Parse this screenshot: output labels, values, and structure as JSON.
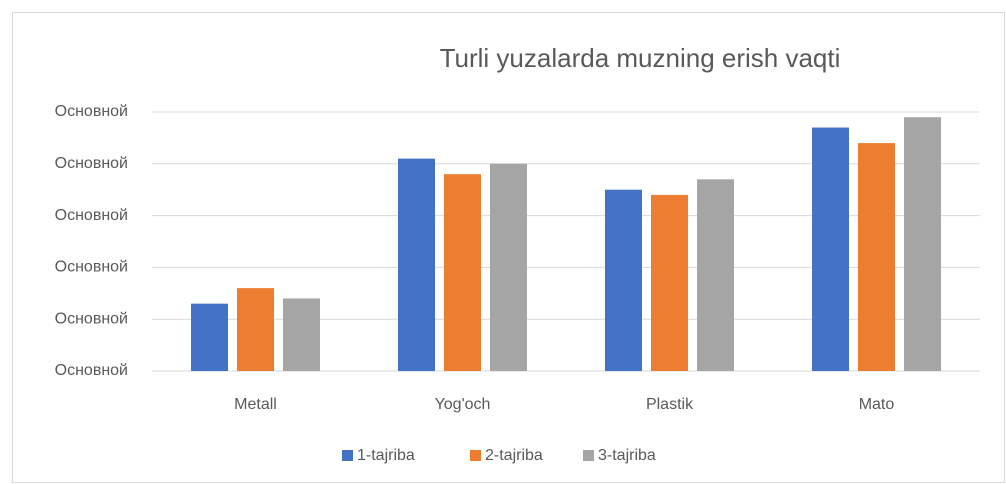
{
  "chart_data": {
    "type": "bar",
    "title": "Turli yuzalarda muzning erish vaqti",
    "categories": [
      "Metall",
      "Yog'och",
      "Plastik",
      "Mato"
    ],
    "series": [
      {
        "name": "1-tajriba",
        "color": "#4472c4",
        "values": [
          1.3,
          4.1,
          3.5,
          4.7
        ]
      },
      {
        "name": "2-tajriba",
        "color": "#ed7d31",
        "values": [
          1.6,
          3.8,
          3.4,
          4.4
        ]
      },
      {
        "name": "3-tajriba",
        "color": "#a5a5a5",
        "values": [
          1.4,
          4.0,
          3.7,
          4.9
        ]
      }
    ],
    "ylim": [
      0,
      5
    ],
    "yticks": [
      {
        "value": 0,
        "label": "Основной"
      },
      {
        "value": 1,
        "label": "Основной"
      },
      {
        "value": 2,
        "label": "Основной"
      },
      {
        "value": 3,
        "label": "Основной"
      },
      {
        "value": 4,
        "label": "Основной"
      },
      {
        "value": 5,
        "label": "Основной"
      }
    ],
    "grid": true,
    "legend": "bottom"
  }
}
